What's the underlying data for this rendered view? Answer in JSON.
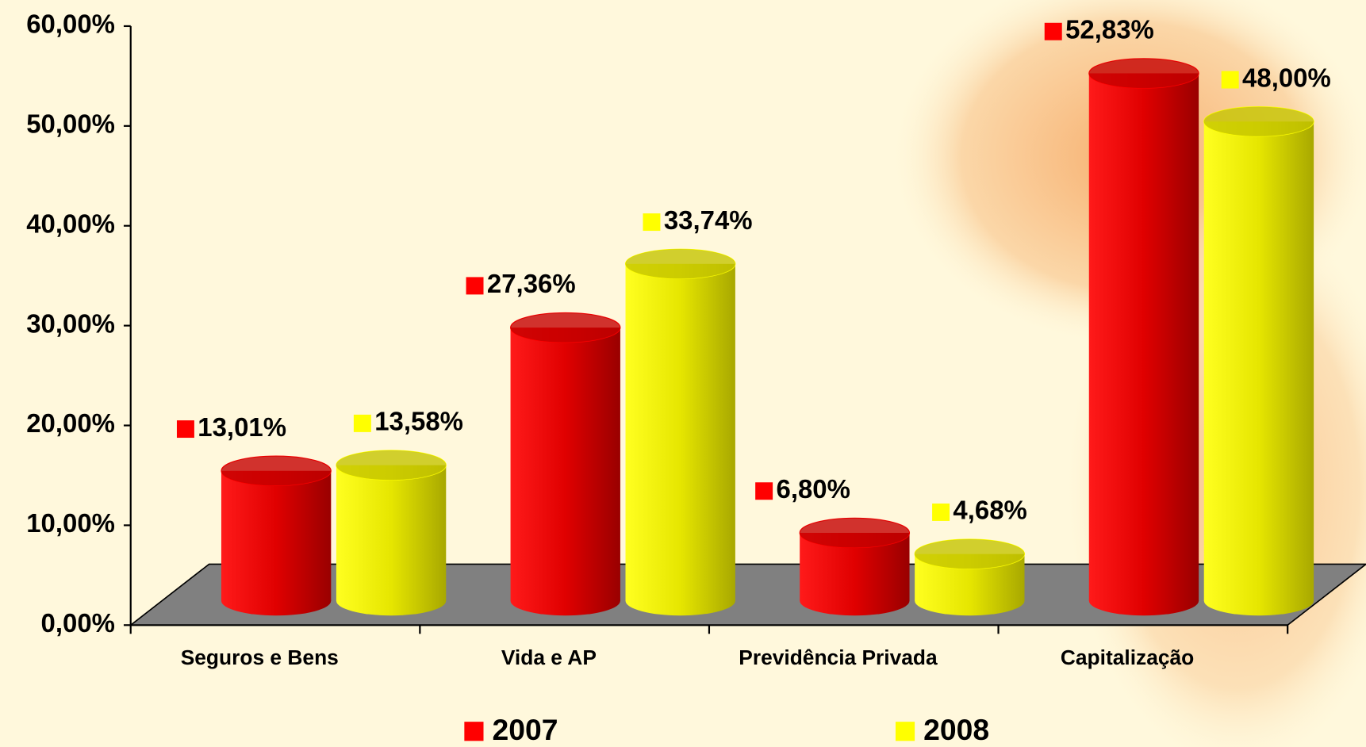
{
  "chart_data": {
    "type": "bar",
    "categories": [
      "Seguros e Bens",
      "Vida e AP",
      "Previdência Privada",
      "Capitalização"
    ],
    "series": [
      {
        "name": "2007",
        "color": "#ff0000",
        "values": [
          13.01,
          27.36,
          6.8,
          52.83
        ],
        "value_labels": [
          "13,01%",
          "27,36%",
          "6,80%",
          "52,83%"
        ]
      },
      {
        "name": "2008",
        "color": "#ffff00",
        "values": [
          13.58,
          33.74,
          4.68,
          48.0
        ],
        "value_labels": [
          "13,58%",
          "33,74%",
          "4,68%",
          "48,00%"
        ]
      }
    ],
    "ylim": [
      0,
      60
    ],
    "yticks": [
      {
        "value": 0,
        "label": "0,00%"
      },
      {
        "value": 10,
        "label": "10,00%"
      },
      {
        "value": 20,
        "label": "20,00%"
      },
      {
        "value": 30,
        "label": "30,00%"
      },
      {
        "value": 40,
        "label": "40,00%"
      },
      {
        "value": 50,
        "label": "50,00%"
      },
      {
        "value": 60,
        "label": "60,00%"
      }
    ]
  }
}
